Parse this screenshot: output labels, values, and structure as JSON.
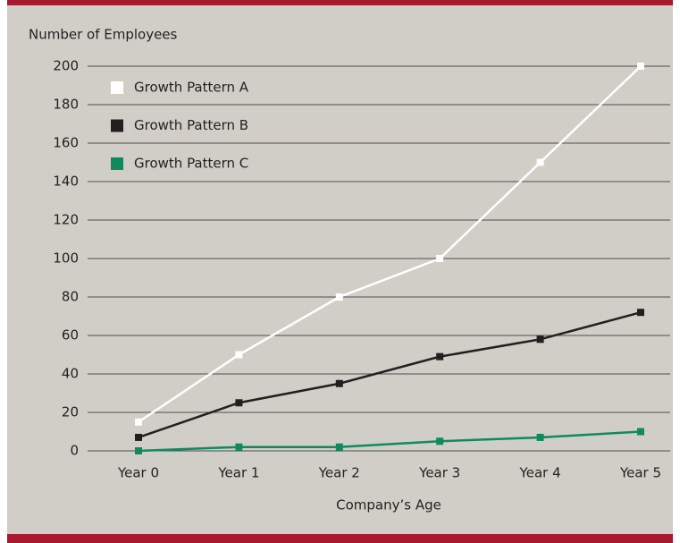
{
  "chart_data": {
    "type": "line",
    "y_label": "Number of Employees",
    "x_label": "Company’s Age",
    "categories": [
      "Year 0",
      "Year 1",
      "Year 2",
      "Year 3",
      "Year 4",
      "Year 5"
    ],
    "series": [
      {
        "name": "Growth Pattern A",
        "color": "#ffffff",
        "values": [
          15,
          50,
          80,
          100,
          150,
          200
        ]
      },
      {
        "name": "Growth Pattern B",
        "color": "#231f20",
        "values": [
          7,
          25,
          35,
          49,
          58,
          72
        ]
      },
      {
        "name": "Growth Pattern C",
        "color": "#0f8a5f",
        "values": [
          0,
          2,
          2,
          5,
          7,
          10
        ]
      }
    ],
    "ylim": [
      0,
      200
    ],
    "yticks": [
      0,
      20,
      40,
      60,
      80,
      100,
      120,
      140,
      160,
      180,
      200
    ],
    "grid": true,
    "legend": "upper left"
  }
}
